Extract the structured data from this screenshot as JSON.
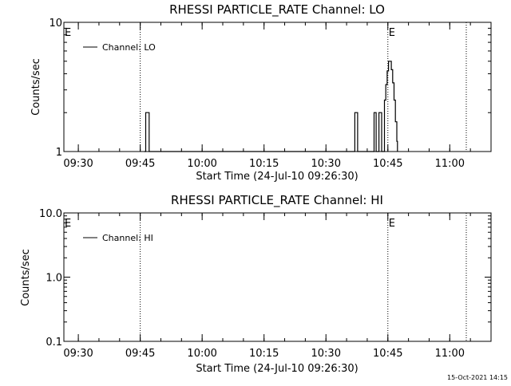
{
  "footer_timestamp": "15-Oct-2021 14:15",
  "chart_data": [
    {
      "type": "line",
      "title": "RHESSI PARTICLE_RATE Channel: LO",
      "xlabel": "Start Time (24-Jul-10 09:26:30)",
      "ylabel": "Counts/sec",
      "y_scale": "log",
      "ylim": [
        1,
        10
      ],
      "xlim": [
        "09:26:30",
        "11:10:00"
      ],
      "x_ticks": [
        "09:30",
        "09:45",
        "10:00",
        "10:15",
        "10:30",
        "10:45",
        "11:00"
      ],
      "y_ticks": [
        "1",
        "10"
      ],
      "legend": {
        "position": "top-left",
        "entries": [
          "Channel: LO"
        ]
      },
      "markers": [
        {
          "label": "E",
          "time": "09:26:30"
        },
        {
          "label": "E",
          "time": "10:45:00"
        }
      ],
      "vlines": [
        "09:45:00",
        "10:45:00",
        "11:04:00"
      ],
      "series": [
        {
          "name": "Channel: LO",
          "x": [
            "09:46:00",
            "09:46:20",
            "09:46:30",
            "09:47:00",
            "09:47:10",
            "10:36:50",
            "10:37:00",
            "10:37:30",
            "10:37:40",
            "10:41:30",
            "10:41:40",
            "10:42:00",
            "10:42:10",
            "10:42:40",
            "10:42:50",
            "10:43:20",
            "10:43:30",
            "10:44:10",
            "10:44:30",
            "10:44:50",
            "10:45:10",
            "10:45:30",
            "10:45:50",
            "10:46:10",
            "10:46:30",
            "10:46:50",
            "10:47:10",
            "10:47:20"
          ],
          "y": [
            1,
            2,
            2,
            2,
            1,
            1,
            2,
            2,
            1,
            1,
            2,
            2,
            1,
            1,
            2,
            2,
            1,
            2.5,
            3.3,
            4.2,
            5,
            5,
            4.3,
            3.4,
            2.5,
            1.7,
            1.2,
            1
          ]
        }
      ]
    },
    {
      "type": "line",
      "title": "RHESSI PARTICLE_RATE Channel: HI",
      "xlabel": "Start Time (24-Jul-10 09:26:30)",
      "ylabel": "Counts/sec",
      "y_scale": "log",
      "ylim": [
        0.1,
        10
      ],
      "xlim": [
        "09:26:30",
        "11:10:00"
      ],
      "x_ticks": [
        "09:30",
        "09:45",
        "10:00",
        "10:15",
        "10:30",
        "10:45",
        "11:00"
      ],
      "y_ticks": [
        "0.1",
        "1.0",
        "10.0"
      ],
      "legend": {
        "position": "top-left",
        "entries": [
          "Channel: HI"
        ]
      },
      "markers": [
        {
          "label": "E",
          "time": "09:26:30"
        },
        {
          "label": "E",
          "time": "10:45:00"
        }
      ],
      "vlines": [
        "09:45:00",
        "10:45:00",
        "11:04:00"
      ],
      "series": [
        {
          "name": "Channel: HI",
          "x": [],
          "y": []
        }
      ]
    }
  ]
}
